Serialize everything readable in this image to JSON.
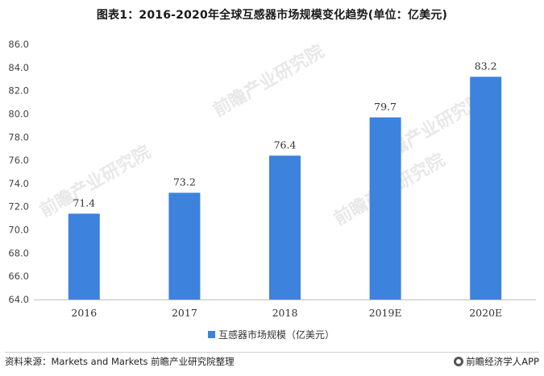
{
  "title": "图表1：2016-2020年全球互感器市场规模变化趋势(单位：亿美元)",
  "source": "资料来源：Markets and Markets 前瞻产业研究院整理",
  "brand": "前瞻经济学人APP",
  "watermark": "前瞻产业研究院",
  "colors": {
    "bar": "#3d82dc",
    "axis": "#bfbfbf",
    "text": "#333333"
  },
  "chart_data": {
    "type": "bar",
    "categories": [
      "2016",
      "2017",
      "2018",
      "2019E",
      "2020E"
    ],
    "series": [
      {
        "name": "互感器市场规模（亿美元）",
        "values": [
          71.4,
          73.2,
          76.4,
          79.7,
          83.2
        ]
      }
    ],
    "ylim": [
      64.0,
      86.0
    ],
    "yticks": [
      "64.0",
      "66.0",
      "68.0",
      "70.0",
      "72.0",
      "74.0",
      "76.0",
      "78.0",
      "80.0",
      "82.0",
      "84.0",
      "86.0"
    ],
    "data_labels": [
      "71.4",
      "73.2",
      "76.4",
      "79.7",
      "83.2"
    ],
    "legend": "bottom-center",
    "grid": false
  }
}
